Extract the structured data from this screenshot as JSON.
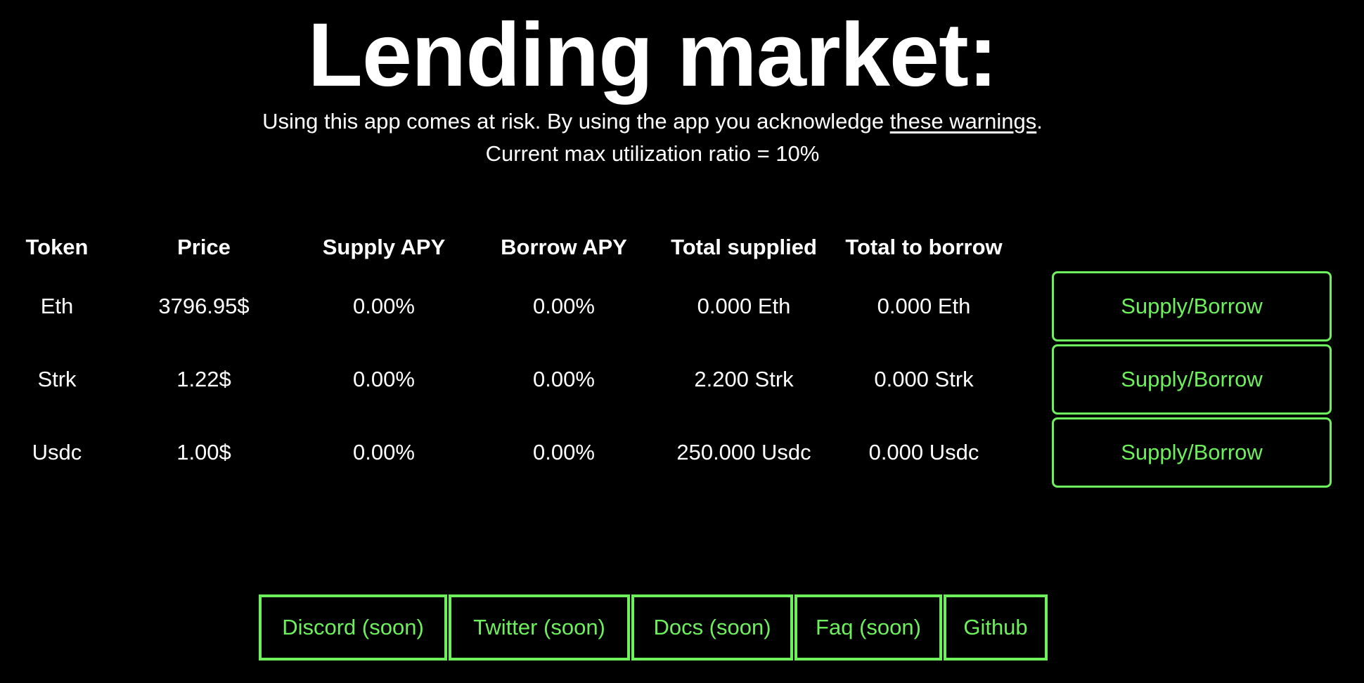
{
  "header": {
    "title": "Lending market:",
    "risk_text_before": "Using this app comes at risk. By using the app you acknowledge ",
    "risk_link": "these warnings",
    "risk_text_after": ".",
    "utilization": "Current max utilization ratio = 10%"
  },
  "table": {
    "columns": [
      "Token",
      "Price",
      "Supply APY",
      "Borrow APY",
      "Total supplied",
      "Total to borrow"
    ],
    "rows": [
      {
        "token": "Eth",
        "price": "3796.95$",
        "supply_apy": "0.00%",
        "borrow_apy": "0.00%",
        "total_supplied": "0.000 Eth",
        "total_to_borrow": "0.000 Eth",
        "action": "Supply/Borrow"
      },
      {
        "token": "Strk",
        "price": "1.22$",
        "supply_apy": "0.00%",
        "borrow_apy": "0.00%",
        "total_supplied": "2.200 Strk",
        "total_to_borrow": "0.000 Strk",
        "action": "Supply/Borrow"
      },
      {
        "token": "Usdc",
        "price": "1.00$",
        "supply_apy": "0.00%",
        "borrow_apy": "0.00%",
        "total_supplied": "250.000 Usdc",
        "total_to_borrow": "0.000 Usdc",
        "action": "Supply/Borrow"
      }
    ]
  },
  "footer": {
    "links": [
      "Discord (soon)",
      "Twitter (soon)",
      "Docs (soon)",
      "Faq (soon)",
      "Github"
    ]
  },
  "colors": {
    "background": "#000000",
    "text": "#ffffff",
    "accent": "#6ef05d"
  }
}
